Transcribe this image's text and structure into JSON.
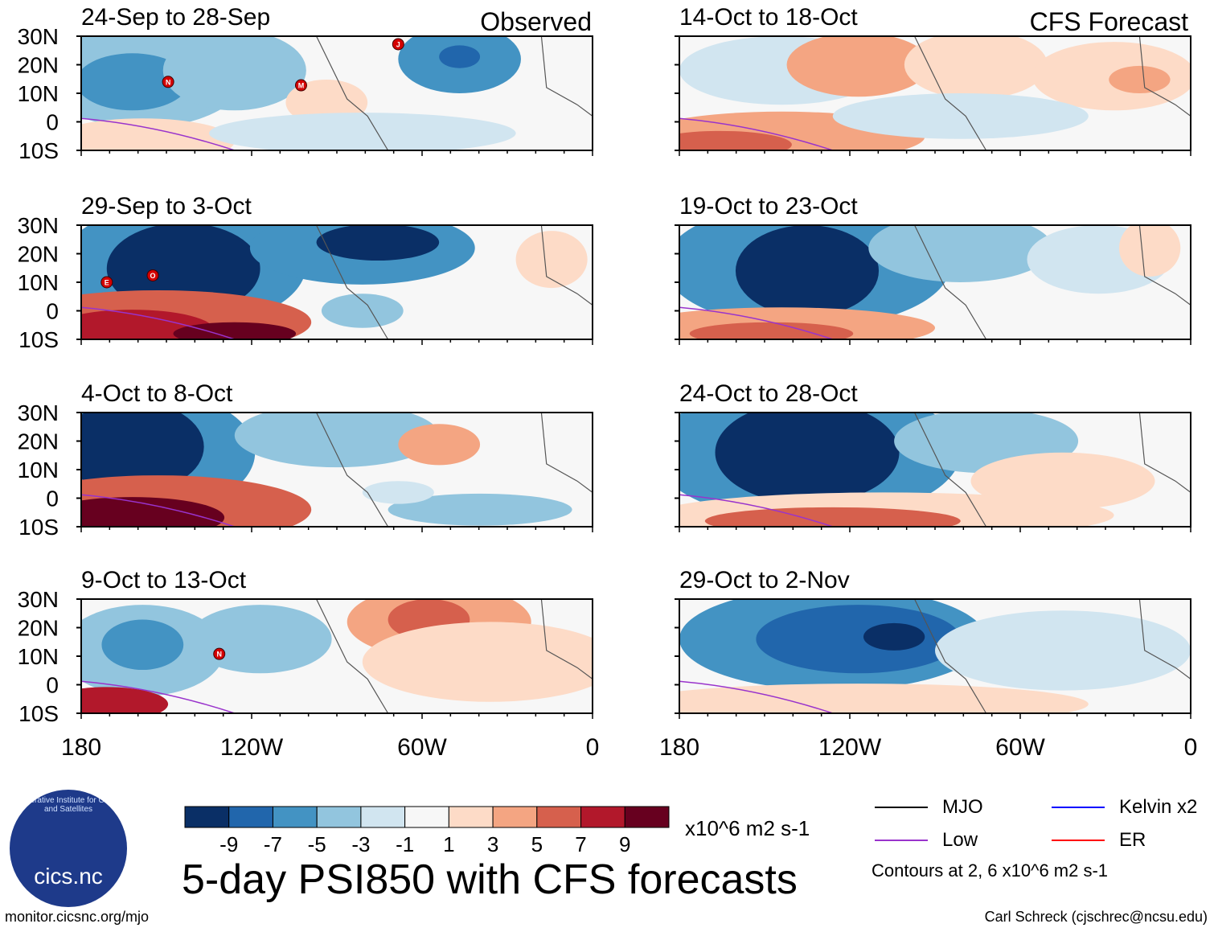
{
  "header": {
    "observed_label": "Observed",
    "forecast_label": "CFS Forecast"
  },
  "chart_data": {
    "type": "heatmap",
    "title": "5-day PSI850 with CFS forecasts",
    "units": "x10^6 m2 s-1",
    "lat_ticks": [
      "30N",
      "20N",
      "10N",
      "0",
      "10S"
    ],
    "lon_ticks": [
      "180",
      "120W",
      "60W",
      "0"
    ],
    "colorbar": {
      "labels": [
        "-9",
        "-7",
        "-5",
        "-3",
        "-1",
        "1",
        "3",
        "5",
        "7",
        "9"
      ],
      "colors": [
        "#0a2f66",
        "#2166ac",
        "#4393c3",
        "#92c5de",
        "#d1e5f0",
        "#f7f7f7",
        "#fddbc7",
        "#f4a582",
        "#d6604d",
        "#b2182b",
        "#67001f"
      ]
    },
    "panels": [
      {
        "label": "24-Sep to 28-Sep",
        "column": "observed"
      },
      {
        "label": "29-Sep to 3-Oct",
        "column": "observed"
      },
      {
        "label": "4-Oct to 8-Oct",
        "column": "observed"
      },
      {
        "label": "9-Oct to 13-Oct",
        "column": "observed"
      },
      {
        "label": "14-Oct to 18-Oct",
        "column": "forecast"
      },
      {
        "label": "19-Oct to 23-Oct",
        "column": "forecast"
      },
      {
        "label": "24-Oct to 28-Oct",
        "column": "forecast"
      },
      {
        "label": "29-Oct to 2-Nov",
        "column": "forecast"
      }
    ],
    "storm_markers": [
      {
        "panel": 0,
        "letter": "N"
      },
      {
        "panel": 0,
        "letter": "M"
      },
      {
        "panel": 0,
        "letter": "J"
      },
      {
        "panel": 1,
        "letter": "E"
      },
      {
        "panel": 1,
        "letter": "O"
      },
      {
        "panel": 3,
        "letter": "N"
      }
    ],
    "contour_legend": [
      {
        "name": "MJO",
        "color": "#000000"
      },
      {
        "name": "Kelvin x2",
        "color": "#0000ff"
      },
      {
        "name": "Low",
        "color": "#9933cc"
      },
      {
        "name": "ER",
        "color": "#ff0000"
      }
    ],
    "contour_note": "Contours at 2, 6 x10^6 m2 s-1"
  },
  "branding": {
    "logo_text": "cics.nc",
    "logo_ring_text": "Cooperative Institute for Climate and Satellites",
    "site": "monitor.cicsnc.org/mjo",
    "credit": "Carl Schreck (cjschrec@ncsu.edu)"
  }
}
